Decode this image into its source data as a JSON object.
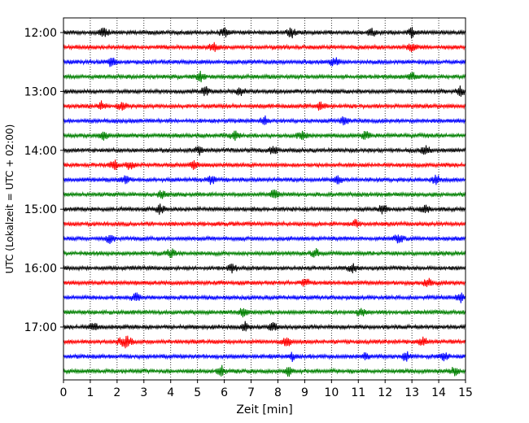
{
  "chart_data": {
    "type": "line",
    "title": "",
    "xlabel": "Zeit  [min]",
    "ylabel": "UTC (Lokalzeit = UTC + 02:00)",
    "xlim": [
      0,
      15
    ],
    "x_ticks": [
      0,
      1,
      2,
      3,
      4,
      5,
      6,
      7,
      8,
      9,
      10,
      11,
      12,
      13,
      14,
      15
    ],
    "x_tick_labels": [
      "0",
      "1",
      "2",
      "3",
      "4",
      "5",
      "6",
      "7",
      "8",
      "9",
      "10",
      "11",
      "12",
      "13",
      "14",
      "15"
    ],
    "y_tick_labels": [
      {
        "label": "12:00",
        "trace": 0
      },
      {
        "label": "13:00",
        "trace": 4
      },
      {
        "label": "14:00",
        "trace": 8
      },
      {
        "label": "15:00",
        "trace": 12
      },
      {
        "label": "16:00",
        "trace": 16
      },
      {
        "label": "17:00",
        "trace": 20
      }
    ],
    "grid": "vertical-dotted",
    "trace_interval_min": 15,
    "colors": [
      "#000000",
      "#ff0000",
      "#0000ff",
      "#008000"
    ],
    "traces": [
      {
        "start": "12:00",
        "color": "#000000",
        "events": [
          1.5,
          6.0,
          8.5,
          11.5,
          13.0
        ]
      },
      {
        "start": "12:15",
        "color": "#ff0000",
        "events": [
          5.6,
          13.0
        ]
      },
      {
        "start": "12:30",
        "color": "#0000ff",
        "events": [
          1.8,
          10.1
        ]
      },
      {
        "start": "12:45",
        "color": "#008000",
        "events": [
          5.1,
          13.0
        ]
      },
      {
        "start": "13:00",
        "color": "#000000",
        "events": [
          5.3,
          6.6,
          14.8
        ]
      },
      {
        "start": "13:15",
        "color": "#ff0000",
        "events": [
          1.4,
          2.2,
          9.6
        ]
      },
      {
        "start": "13:30",
        "color": "#0000ff",
        "events": [
          7.5,
          10.5
        ]
      },
      {
        "start": "13:45",
        "color": "#008000",
        "events": [
          1.5,
          6.4,
          8.9,
          11.3
        ]
      },
      {
        "start": "14:00",
        "color": "#000000",
        "events": [
          5.1,
          7.8,
          13.5
        ]
      },
      {
        "start": "14:15",
        "color": "#ff0000",
        "events": [
          1.9,
          2.5,
          4.9
        ]
      },
      {
        "start": "14:30",
        "color": "#0000ff",
        "events": [
          2.3,
          5.5,
          10.2,
          13.9
        ]
      },
      {
        "start": "14:45",
        "color": "#008000",
        "events": [
          3.7,
          7.9
        ]
      },
      {
        "start": "15:00",
        "color": "#000000",
        "events": [
          3.6,
          11.9,
          13.5
        ]
      },
      {
        "start": "15:15",
        "color": "#ff0000",
        "events": [
          10.9
        ]
      },
      {
        "start": "15:30",
        "color": "#0000ff",
        "events": [
          1.7,
          12.5
        ]
      },
      {
        "start": "15:45",
        "color": "#008000",
        "events": [
          4.0,
          9.4
        ]
      },
      {
        "start": "16:00",
        "color": "#000000",
        "events": [
          6.3,
          10.8
        ]
      },
      {
        "start": "16:15",
        "color": "#ff0000",
        "events": [
          9.0,
          13.6
        ]
      },
      {
        "start": "16:30",
        "color": "#0000ff",
        "events": [
          2.7,
          14.8
        ]
      },
      {
        "start": "16:45",
        "color": "#008000",
        "events": [
          6.7,
          11.1
        ]
      },
      {
        "start": "17:00",
        "color": "#000000",
        "events": [
          1.1,
          6.8,
          7.8
        ]
      },
      {
        "start": "17:15",
        "color": "#ff0000",
        "events": [
          2.2,
          2.4,
          8.3,
          13.4
        ]
      },
      {
        "start": "17:30",
        "color": "#0000ff",
        "events": [
          8.5,
          11.3,
          12.8,
          14.2
        ]
      },
      {
        "start": "17:45",
        "color": "#008000",
        "events": [
          5.9,
          8.4,
          14.6
        ]
      }
    ]
  }
}
